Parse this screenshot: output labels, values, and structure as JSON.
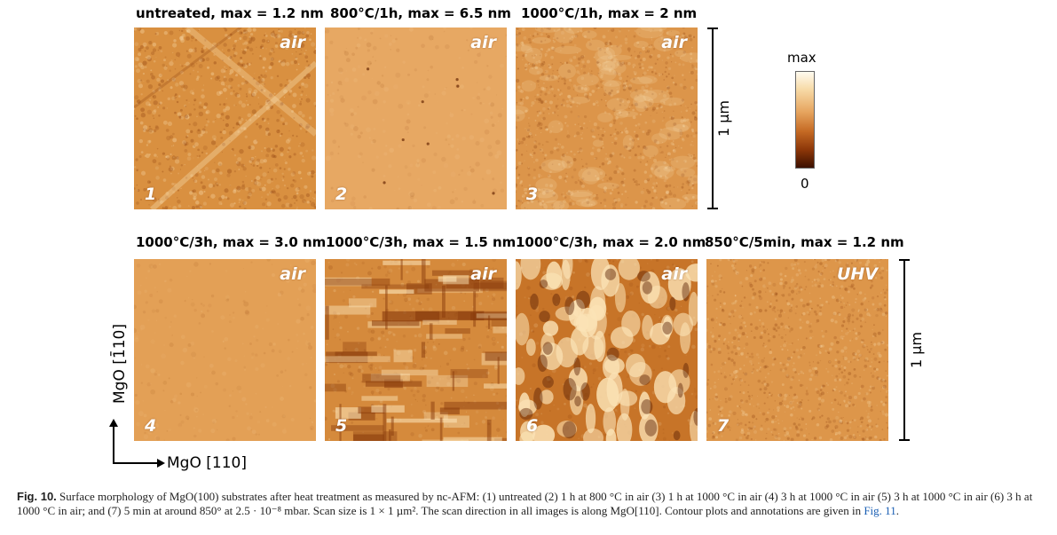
{
  "panels": [
    {
      "title": "untreated, max = 1.2 nm",
      "env": "air",
      "num": "1",
      "base": "#d99040",
      "seed": 11,
      "style": "rough"
    },
    {
      "title": "800°C/1h, max = 6.5 nm",
      "env": "air",
      "num": "2",
      "base": "#e7a863",
      "seed": 23,
      "style": "smooth"
    },
    {
      "title": "1000°C/1h, max = 2 nm",
      "env": "air",
      "num": "3",
      "base": "#dc954a",
      "seed": 37,
      "style": "fine"
    },
    {
      "title": "1000°C/3h, max = 3.0 nm",
      "env": "air",
      "num": "4",
      "base": "#e3a056",
      "seed": 41,
      "style": "smooth"
    },
    {
      "title": "1000°C/3h, max = 1.5 nm",
      "env": "air",
      "num": "5",
      "base": "#d58a3c",
      "seed": 53,
      "style": "terraces"
    },
    {
      "title": "1000°C/3h, max = 2.0 nm",
      "env": "air",
      "num": "6",
      "base": "#c77428",
      "seed": 67,
      "style": "islands"
    },
    {
      "title": "850°C/5min, max = 1.2 nm",
      "env": "UHV",
      "num": "7",
      "base": "#dd964a",
      "seed": 79,
      "style": "fine"
    }
  ],
  "scale_label": "1 µm",
  "colorbar": {
    "max_label": "max",
    "min_label": "0"
  },
  "axes": {
    "x_label": "MgO [110]",
    "y_label": "MgO [1̄10]"
  },
  "caption": {
    "fig_label": "Fig. 10.",
    "text": "Surface morphology of MgO(100) substrates after heat treatment as measured by nc-AFM: (1) untreated (2) 1 h at 800 °C in air (3) 1 h at 1000 °C in air (4) 3 h at 1000 °C in air (5) 3 h at 1000 °C in air (6) 3 h at 1000 °C in air; and (7) 5 min at around 850° at 2.5 · 10⁻⁸ mbar. Scan size is 1 × 1 µm². The scan direction in all images is along MgO[110]. Contour plots and annotations are given in",
    "link": "Fig. 11",
    "end": "."
  },
  "colors": {
    "texture_dark": "#8a3c0c",
    "texture_light": "#fbe3b6"
  }
}
